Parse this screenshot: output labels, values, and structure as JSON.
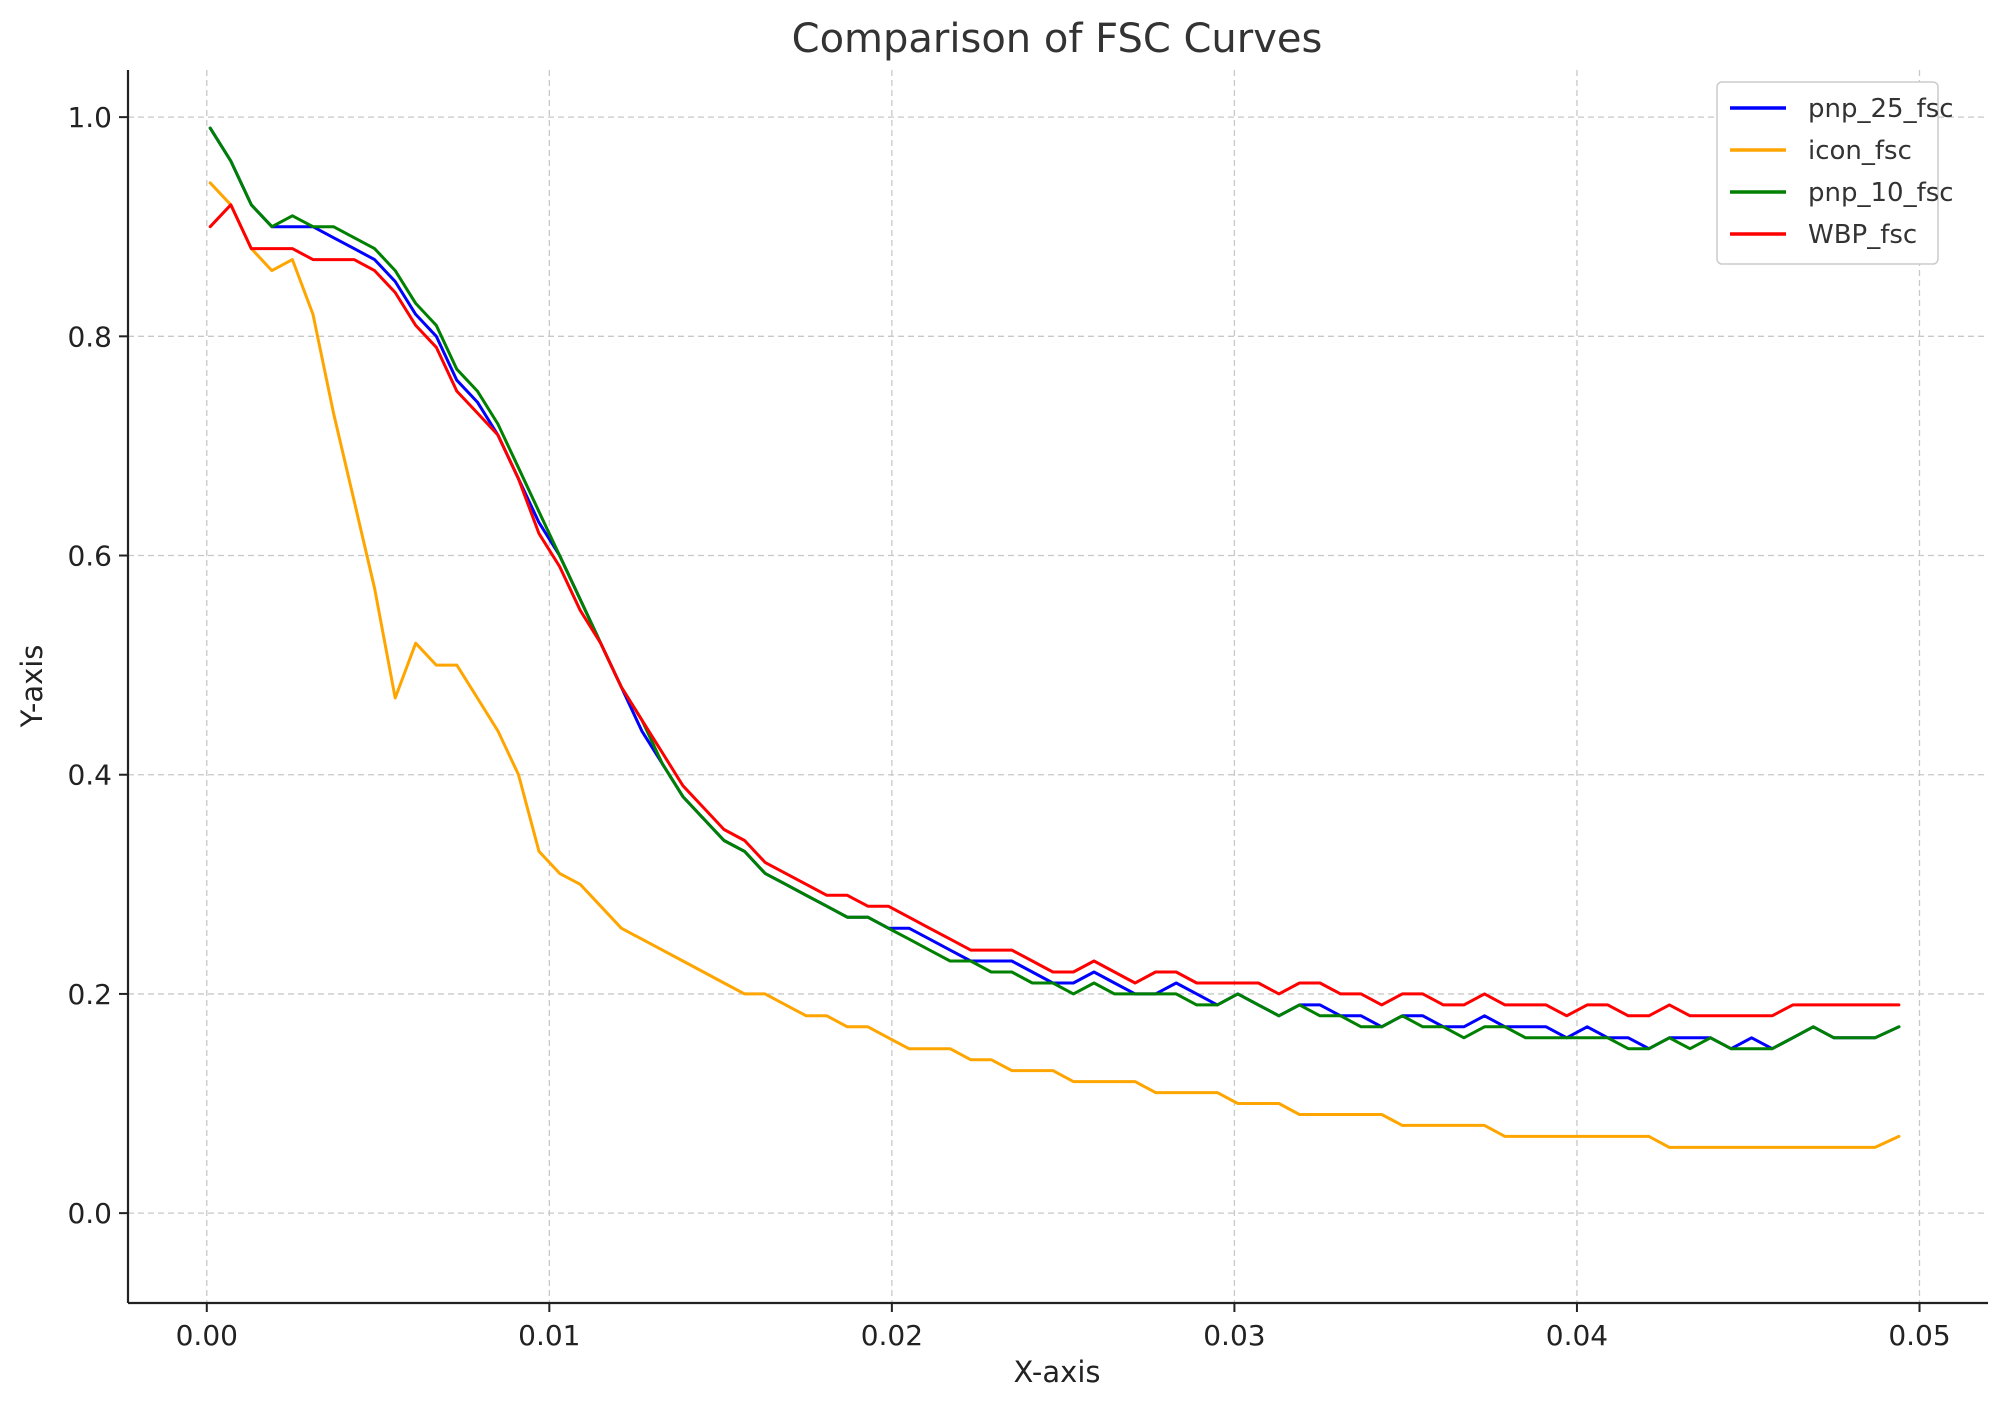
{
  "chart_data": {
    "type": "line",
    "title": "Comparison of FSC Curves",
    "xlabel": "X-axis",
    "ylabel": "Y-axis",
    "xlim": [
      -0.0023,
      0.052
    ],
    "ylim": [
      -0.082,
      1.043
    ],
    "xticks": [
      0.0,
      0.01,
      0.02,
      0.03,
      0.04,
      0.05
    ],
    "xtick_labels": [
      "0.00",
      "0.01",
      "0.02",
      "0.03",
      "0.04",
      "0.05"
    ],
    "yticks": [
      0.0,
      0.2,
      0.4,
      0.6,
      0.8,
      1.0
    ],
    "ytick_labels": [
      "0.0",
      "0.2",
      "0.4",
      "0.6",
      "0.8",
      "1.0"
    ],
    "grid": true,
    "legend": "top-right",
    "x": [
      0.0001,
      0.0007,
      0.0013,
      0.0019,
      0.0025,
      0.0031,
      0.0037,
      0.0043,
      0.0049,
      0.0055,
      0.0061,
      0.0067,
      0.0073,
      0.0079,
      0.0085,
      0.0091,
      0.0097,
      0.0103,
      0.0109,
      0.0115,
      0.0121,
      0.0127,
      0.0133,
      0.0139,
      0.0145,
      0.0151,
      0.0157,
      0.0163,
      0.0169,
      0.0175,
      0.0181,
      0.0187,
      0.0193,
      0.0199,
      0.0205,
      0.0211,
      0.0217,
      0.0223,
      0.0229,
      0.0235,
      0.0241,
      0.0247,
      0.0253,
      0.0259,
      0.0265,
      0.0271,
      0.0277,
      0.0283,
      0.0289,
      0.0295,
      0.0301,
      0.0307,
      0.0313,
      0.0319,
      0.0325,
      0.0331,
      0.0337,
      0.0343,
      0.0349,
      0.0355,
      0.0361,
      0.0367,
      0.0373,
      0.0379,
      0.0385,
      0.0391,
      0.0397,
      0.0403,
      0.0409,
      0.0415,
      0.0421,
      0.0427,
      0.0433,
      0.0439,
      0.0445,
      0.0451,
      0.0457,
      0.0463,
      0.0469,
      0.0475,
      0.0481,
      0.0487,
      0.0494
    ],
    "series": [
      {
        "name": "pnp_25_fsc",
        "color": "#0000ff",
        "values": [
          0.99,
          0.96,
          0.92,
          0.9,
          0.9,
          0.9,
          0.89,
          0.88,
          0.87,
          0.85,
          0.82,
          0.8,
          0.76,
          0.74,
          0.71,
          0.67,
          0.63,
          0.6,
          0.56,
          0.52,
          0.48,
          0.44,
          0.41,
          0.38,
          0.36,
          0.34,
          0.33,
          0.31,
          0.3,
          0.29,
          0.28,
          0.27,
          0.27,
          0.26,
          0.26,
          0.25,
          0.24,
          0.23,
          0.23,
          0.23,
          0.22,
          0.21,
          0.21,
          0.22,
          0.21,
          0.2,
          0.2,
          0.21,
          0.2,
          0.19,
          0.2,
          0.19,
          0.18,
          0.19,
          0.19,
          0.18,
          0.18,
          0.17,
          0.18,
          0.18,
          0.17,
          0.17,
          0.18,
          0.17,
          0.17,
          0.17,
          0.16,
          0.17,
          0.16,
          0.16,
          0.15,
          0.16,
          0.16,
          0.16,
          0.15,
          0.16,
          0.15,
          0.16,
          0.17,
          0.16,
          0.16,
          0.16,
          0.17
        ]
      },
      {
        "name": "icon_fsc",
        "color": "#ffa500",
        "values": [
          0.94,
          0.92,
          0.88,
          0.86,
          0.87,
          0.82,
          0.73,
          0.65,
          0.57,
          0.47,
          0.52,
          0.5,
          0.5,
          0.47,
          0.44,
          0.4,
          0.33,
          0.31,
          0.3,
          0.28,
          0.26,
          0.25,
          0.24,
          0.23,
          0.22,
          0.21,
          0.2,
          0.2,
          0.19,
          0.18,
          0.18,
          0.17,
          0.17,
          0.16,
          0.15,
          0.15,
          0.15,
          0.14,
          0.14,
          0.13,
          0.13,
          0.13,
          0.12,
          0.12,
          0.12,
          0.12,
          0.11,
          0.11,
          0.11,
          0.11,
          0.1,
          0.1,
          0.1,
          0.09,
          0.09,
          0.09,
          0.09,
          0.09,
          0.08,
          0.08,
          0.08,
          0.08,
          0.08,
          0.07,
          0.07,
          0.07,
          0.07,
          0.07,
          0.07,
          0.07,
          0.07,
          0.06,
          0.06,
          0.06,
          0.06,
          0.06,
          0.06,
          0.06,
          0.06,
          0.06,
          0.06,
          0.06,
          0.07
        ]
      },
      {
        "name": "pnp_10_fsc",
        "color": "#008000",
        "values": [
          0.99,
          0.96,
          0.92,
          0.9,
          0.91,
          0.9,
          0.9,
          0.89,
          0.88,
          0.86,
          0.83,
          0.81,
          0.77,
          0.75,
          0.72,
          0.68,
          0.64,
          0.6,
          0.56,
          0.52,
          0.48,
          0.45,
          0.41,
          0.38,
          0.36,
          0.34,
          0.33,
          0.31,
          0.3,
          0.29,
          0.28,
          0.27,
          0.27,
          0.26,
          0.25,
          0.24,
          0.23,
          0.23,
          0.22,
          0.22,
          0.21,
          0.21,
          0.2,
          0.21,
          0.2,
          0.2,
          0.2,
          0.2,
          0.19,
          0.19,
          0.2,
          0.19,
          0.18,
          0.19,
          0.18,
          0.18,
          0.17,
          0.17,
          0.18,
          0.17,
          0.17,
          0.16,
          0.17,
          0.17,
          0.16,
          0.16,
          0.16,
          0.16,
          0.16,
          0.15,
          0.15,
          0.16,
          0.15,
          0.16,
          0.15,
          0.15,
          0.15,
          0.16,
          0.17,
          0.16,
          0.16,
          0.16,
          0.17
        ]
      },
      {
        "name": "WBP_fsc",
        "color": "#ff0000",
        "values": [
          0.9,
          0.92,
          0.88,
          0.88,
          0.88,
          0.87,
          0.87,
          0.87,
          0.86,
          0.84,
          0.81,
          0.79,
          0.75,
          0.73,
          0.71,
          0.67,
          0.62,
          0.59,
          0.55,
          0.52,
          0.48,
          0.45,
          0.42,
          0.39,
          0.37,
          0.35,
          0.34,
          0.32,
          0.31,
          0.3,
          0.29,
          0.29,
          0.28,
          0.28,
          0.27,
          0.26,
          0.25,
          0.24,
          0.24,
          0.24,
          0.23,
          0.22,
          0.22,
          0.23,
          0.22,
          0.21,
          0.22,
          0.22,
          0.21,
          0.21,
          0.21,
          0.21,
          0.2,
          0.21,
          0.21,
          0.2,
          0.2,
          0.19,
          0.2,
          0.2,
          0.19,
          0.19,
          0.2,
          0.19,
          0.19,
          0.19,
          0.18,
          0.19,
          0.19,
          0.18,
          0.18,
          0.19,
          0.18,
          0.18,
          0.18,
          0.18,
          0.18,
          0.19,
          0.19,
          0.19,
          0.19,
          0.19,
          0.19
        ]
      }
    ]
  }
}
